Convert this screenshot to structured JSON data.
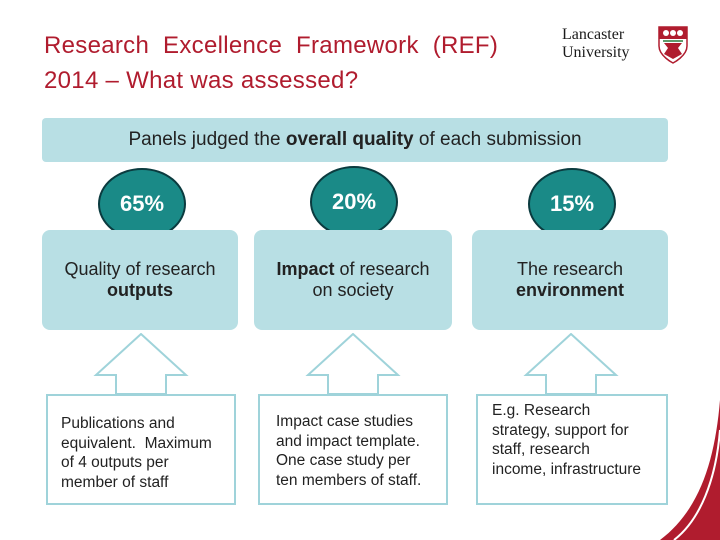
{
  "title": {
    "line1": "Research  Excellence  Framework  (REF)",
    "line2": "2014 – What was assessed?"
  },
  "logo": {
    "line1": "Lancaster",
    "line2": "University",
    "crest_icon": "university-crest-icon"
  },
  "banner": {
    "before": "Panels judged the ",
    "bold": "overall quality",
    "after": " of each submission"
  },
  "pillars": [
    {
      "percent": "65%",
      "label_plain_1": "Quality of research",
      "label_bold_1": "",
      "label_bold_2": "outputs",
      "detail": [
        "Publications and",
        "equivalent.  Maximum",
        "of 4 outputs per",
        "member of staff"
      ]
    },
    {
      "percent": "20%",
      "label_bold_1": "Impact",
      "label_plain_1": " of research",
      "label_plain_2": "on society",
      "detail": [
        "Impact case studies",
        "and impact template.",
        "One case study per",
        "ten members of staff."
      ]
    },
    {
      "percent": "15%",
      "label_plain_1": "The research",
      "label_bold_2": "environment",
      "detail": [
        "E.g. Research",
        "strategy, support for",
        "staff, research",
        "income, infrastructure"
      ]
    }
  ],
  "colors": {
    "title": "#b01c2e",
    "panel": "#b8dfe4",
    "circle": "#1a8a87",
    "circle_border": "#0b3b3f",
    "arrow_outline": "#9fd3da"
  },
  "chart_data": {
    "type": "table",
    "categories": [
      "Outputs",
      "Impact",
      "Environment"
    ],
    "values": [
      65,
      20,
      15
    ]
  }
}
